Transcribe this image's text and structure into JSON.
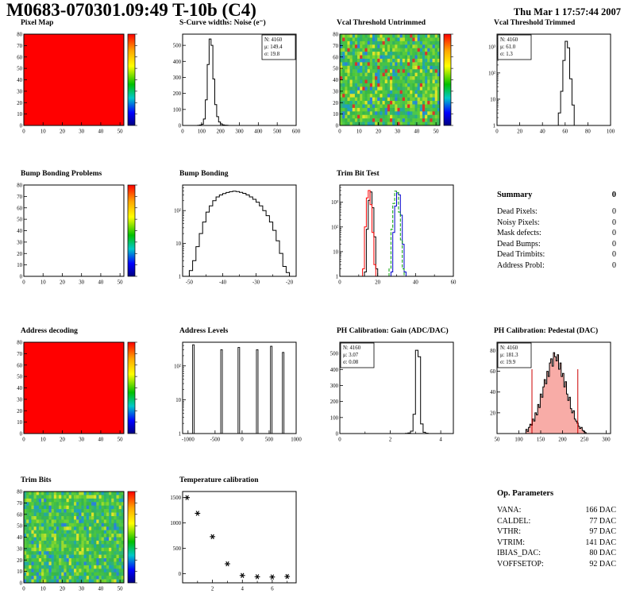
{
  "header": {
    "title": "M0683-070301.09:49 T-10b (C4)",
    "date": "Thu Mar  1 17:57:44 2007"
  },
  "summary": {
    "title": "Summary",
    "total": "0",
    "items": [
      {
        "label": "Dead Pixels:",
        "value": "0"
      },
      {
        "label": "Noisy Pixels:",
        "value": "0"
      },
      {
        "label": "Mask defects:",
        "value": "0"
      },
      {
        "label": "Dead Bumps:",
        "value": "0"
      },
      {
        "label": "Dead Trimbits:",
        "value": "0"
      },
      {
        "label": "Address Probl:",
        "value": "0"
      }
    ]
  },
  "op_parameters": {
    "title": "Op. Parameters",
    "items": [
      {
        "label": "VANA:",
        "value": "166 DAC"
      },
      {
        "label": "CALDEL:",
        "value": "77 DAC"
      },
      {
        "label": "VTHR:",
        "value": "97 DAC"
      },
      {
        "label": "VTRIM:",
        "value": "141 DAC"
      },
      {
        "label": "IBIAS_DAC:",
        "value": "80 DAC"
      },
      {
        "label": "VOFFSETOP:",
        "value": "92 DAC"
      }
    ]
  },
  "colors": {
    "hot_red": "#ff0000",
    "stat_red": "#cc0000",
    "curve_green": "#00a000",
    "curve_blue": "#0000cc"
  },
  "chart_data": [
    {
      "id": "pixel_map",
      "title": "Pixel Map",
      "type": "heatmap",
      "fill_style": "solid",
      "fill_color": "#ff0000",
      "colorbar": true,
      "x": {
        "min": 0,
        "max": 52,
        "ticks": [
          0,
          10,
          20,
          30,
          40,
          50
        ]
      },
      "y": {
        "min": 0,
        "max": 80,
        "ticks": [
          0,
          10,
          20,
          30,
          40,
          50,
          60,
          70,
          80
        ]
      }
    },
    {
      "id": "scurve_noise",
      "title": "S-Curve widths: Noise (e⁻)",
      "type": "histogram",
      "color": "#000000",
      "x": {
        "min": 0,
        "max": 600,
        "ticks": [
          0,
          100,
          200,
          300,
          400,
          500,
          600
        ]
      },
      "y": {
        "min": 0,
        "max": 570,
        "ticks": [
          0,
          100,
          200,
          300,
          400,
          500
        ]
      },
      "bins": {
        "x0": 80,
        "dx": 10,
        "values": [
          1,
          3,
          8,
          40,
          160,
          380,
          540,
          500,
          290,
          130,
          55,
          22,
          10,
          4,
          2,
          1
        ]
      },
      "stats": {
        "pos": "tr",
        "lines": [
          "N: 4160",
          "μ: 149.4",
          "σ: 19.8"
        ]
      }
    },
    {
      "id": "vcal_untrimmed",
      "title": "Vcal Threshold Untrimmed",
      "type": "heatmap",
      "fill_style": "noise",
      "seed": 7,
      "colorbar": true,
      "palette": [
        "#3dbb3d",
        "#46c24a",
        "#52c63f",
        "#5ccc37",
        "#38b756",
        "#2fb36a",
        "#6ed033",
        "#44bf44",
        "#4cc74c",
        "#39ba62",
        "#28ad8a",
        "#23a8a2",
        "#7fd531",
        "#99da2e",
        "#1e9fc0",
        "#bae02b",
        "#2b82d8",
        "#e0e428",
        "#d8352b",
        "#35b54f",
        "#41c046",
        "#4bc53b",
        "#57ca39",
        "#33b25e"
      ],
      "x": {
        "min": 0,
        "max": 52,
        "ticks": [
          0,
          10,
          20,
          30,
          40,
          50
        ]
      },
      "y": {
        "min": 0,
        "max": 80,
        "ticks": [
          0,
          10,
          20,
          30,
          40,
          50,
          60,
          70,
          80
        ]
      }
    },
    {
      "id": "vcal_trimmed",
      "title": "Vcal Threshold Trimmed",
      "type": "histogram",
      "color": "#000000",
      "x": {
        "min": 0,
        "max": 100,
        "ticks": [
          0,
          20,
          40,
          60,
          80,
          100
        ]
      },
      "y": {
        "log": true,
        "max": 3000
      },
      "bins": {
        "x0": 54,
        "dx": 2,
        "values": [
          3,
          20,
          300,
          1600,
          900,
          60,
          6
        ]
      },
      "stats": {
        "pos": "tl",
        "lines": [
          "N: 4160",
          "μ: 61.0",
          "σ: 1.3"
        ]
      }
    },
    {
      "id": "bump_problems",
      "title": "Bump Bonding Problems",
      "type": "heatmap",
      "fill_style": "empty",
      "colorbar": true,
      "x": {
        "min": 0,
        "max": 52,
        "ticks": [
          0,
          10,
          20,
          30,
          40,
          50
        ]
      },
      "y": {
        "min": 0,
        "max": 80,
        "ticks": [
          0,
          10,
          20,
          30,
          40,
          50,
          60,
          70,
          80
        ]
      }
    },
    {
      "id": "bump_bonding",
      "title": "Bump Bonding",
      "type": "histogram",
      "color": "#000000",
      "x": {
        "min": -52,
        "max": -18,
        "ticks": [
          -50,
          -40,
          -30,
          -20
        ],
        "minor": [
          -45,
          -35,
          -25
        ]
      },
      "y": {
        "log": true,
        "max": 600
      },
      "bins": {
        "x0": -50,
        "dx": 1,
        "values": [
          1.5,
          3,
          8,
          20,
          45,
          90,
          140,
          200,
          260,
          300,
          330,
          355,
          375,
          390,
          380,
          360,
          335,
          300,
          260,
          220,
          180,
          140,
          100,
          70,
          45,
          25,
          12,
          5,
          2,
          1.3
        ]
      }
    },
    {
      "id": "trim_bit_test",
      "title": "Trim Bit Test",
      "type": "multi_histogram",
      "x": {
        "min": 0,
        "max": 60,
        "ticks": [
          0,
          20,
          40,
          60
        ],
        "minor": [
          10,
          30,
          50
        ]
      },
      "y": {
        "log": true,
        "max": 5000
      },
      "series": [
        {
          "name": "black",
          "color": "#000000",
          "x0": 13,
          "dx": 1,
          "values": [
            1.5,
            80,
            1200,
            2600,
            600,
            40,
            2
          ]
        },
        {
          "name": "red",
          "color": "#ff0000",
          "x0": 12,
          "dx": 1,
          "values": [
            2,
            100,
            1500,
            3000,
            800,
            60,
            3
          ]
        },
        {
          "name": "blue",
          "color": "#0000cc",
          "x0": 27,
          "dx": 1,
          "values": [
            1.5,
            60,
            700,
            2400,
            2000,
            300,
            20,
            1.5
          ]
        },
        {
          "name": "green-dashed",
          "color": "#00a000",
          "dash": "4,2",
          "x0": 26,
          "dx": 1,
          "values": [
            2,
            80,
            900,
            2800,
            2500,
            400,
            30,
            2
          ]
        }
      ]
    },
    {
      "id": "address_decoding",
      "title": "Address decoding",
      "type": "heatmap",
      "fill_style": "solid",
      "fill_color": "#ff0000",
      "colorbar": true,
      "x": {
        "min": 0,
        "max": 52,
        "ticks": [
          0,
          10,
          20,
          30,
          40,
          50
        ]
      },
      "y": {
        "min": 0,
        "max": 80,
        "ticks": [
          0,
          10,
          20,
          30,
          40,
          50,
          60,
          70,
          80
        ]
      }
    },
    {
      "id": "address_levels",
      "title": "Address Levels",
      "type": "spikes",
      "color": "#000000",
      "x": {
        "min": -1100,
        "max": 1000,
        "ticks": [
          -1000,
          -500,
          0,
          500,
          1000
        ]
      },
      "y": {
        "log": true,
        "max": 500
      },
      "spikes": [
        [
          -900,
          420
        ],
        [
          -380,
          300
        ],
        [
          -60,
          350
        ],
        [
          280,
          300
        ],
        [
          540,
          380
        ],
        [
          760,
          250
        ]
      ]
    },
    {
      "id": "ph_gain",
      "title": "PH Calibration: Gain (ADC/DAC)",
      "type": "histogram",
      "color": "#000000",
      "x": {
        "min": 0,
        "max": 4.5,
        "ticks": [
          0,
          2,
          4
        ],
        "minor": [
          1,
          3
        ]
      },
      "y": {
        "min": 0,
        "max": 570,
        "ticks": [
          0,
          100,
          200,
          300,
          400,
          500
        ]
      },
      "bins": {
        "x0": 2.6,
        "dx": 0.1,
        "values": [
          1,
          4,
          15,
          120,
          520,
          480,
          60,
          8,
          2
        ]
      },
      "stats": {
        "pos": "tl",
        "lines": [
          "N: 4160",
          "μ: 3.07",
          "σ: 0.08"
        ]
      }
    },
    {
      "id": "ph_pedestal",
      "title": "PH Calibration: Pedestal (DAC)",
      "type": "histogram",
      "color": "#000000",
      "fill": "rgba(240,70,60,0.45)",
      "x": {
        "min": 50,
        "max": 310,
        "ticks": [
          50,
          100,
          150,
          200,
          250,
          300
        ]
      },
      "y": {
        "min": 0,
        "max": 88,
        "ticks": [
          20,
          40,
          60,
          80
        ]
      },
      "bins": {
        "x0": 116,
        "dx": 3,
        "values": [
          4,
          2,
          6,
          9,
          8,
          14,
          12,
          20,
          18,
          28,
          25,
          38,
          35,
          45,
          52,
          48,
          60,
          55,
          68,
          72,
          65,
          78,
          74,
          70,
          76,
          62,
          68,
          55,
          58,
          45,
          50,
          38,
          32,
          35,
          24,
          20,
          22,
          14,
          12,
          10,
          7,
          5,
          6,
          3,
          2,
          1
        ]
      },
      "vlines": [
        {
          "x": 130,
          "h": 62,
          "color": "#cc0000"
        },
        {
          "x": 235,
          "h": 62,
          "color": "#cc0000"
        }
      ],
      "stats": {
        "pos": "tl",
        "lines": [
          "N: 4160",
          "μ: 181.3",
          "σ: 19.9"
        ],
        "line_colors": [
          "#000000",
          "#cc0000",
          "#cc0000"
        ]
      }
    },
    {
      "id": "trim_bits",
      "title": "Trim Bits",
      "type": "heatmap",
      "fill_style": "noise",
      "seed": 21,
      "colorbar": true,
      "palette": [
        "#3dbb3d",
        "#46c24a",
        "#52c63f",
        "#5ccc37",
        "#38b756",
        "#2fb36a",
        "#6ed033",
        "#44bf44",
        "#4cc74c",
        "#39ba62",
        "#28ad8a",
        "#23a8a2",
        "#7fd531",
        "#99da2e",
        "#1e9fc0",
        "#bae02b",
        "#2b82d8",
        "#e0e428",
        "#35b54f",
        "#41c046",
        "#4bc53b",
        "#57ca39",
        "#33b25e",
        "#30b474"
      ],
      "x": {
        "min": 0,
        "max": 52,
        "ticks": [
          0,
          10,
          20,
          30,
          40,
          50
        ]
      },
      "y": {
        "min": 0,
        "max": 80,
        "ticks": [
          0,
          10,
          20,
          30,
          40,
          50,
          60,
          70,
          80
        ]
      }
    },
    {
      "id": "temperature",
      "title": "Temperature calibration",
      "type": "scatter",
      "color": "#000000",
      "x": {
        "min": 0,
        "max": 7.6,
        "ticks": [
          2,
          4,
          6
        ],
        "minor": [
          1,
          3,
          5,
          7
        ]
      },
      "y": {
        "min": -180,
        "max": 1620,
        "ticks": [
          0,
          500,
          1000,
          1500
        ]
      },
      "points": [
        [
          0.3,
          1500
        ],
        [
          1,
          1190
        ],
        [
          2,
          730
        ],
        [
          3,
          195
        ],
        [
          4,
          -35
        ],
        [
          5,
          -60
        ],
        [
          6,
          -65
        ],
        [
          7,
          -55
        ]
      ]
    }
  ]
}
